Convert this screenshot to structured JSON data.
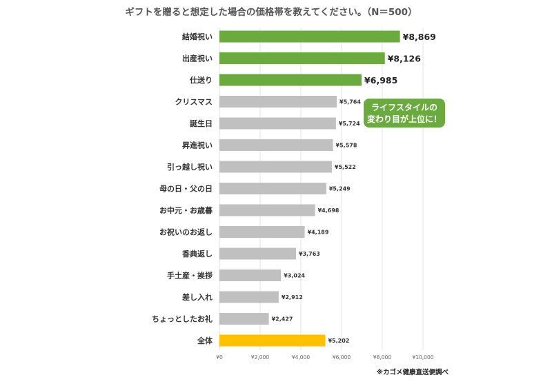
{
  "chart_data": {
    "type": "bar",
    "orientation": "horizontal",
    "title": "ギフトを贈ると想定した場合の価格帯を教えてください。（N＝500）",
    "categories": [
      "結婚祝い",
      "出産祝い",
      "仕送り",
      "クリスマス",
      "誕生日",
      "昇進祝い",
      "引っ越し祝い",
      "母の日・父の日",
      "お中元・お歳暮",
      "お祝いのお返し",
      "香典返し",
      "手土産・挨拶",
      "差し入れ",
      "ちょっとしたお礼",
      "全体"
    ],
    "values": [
      8869,
      8126,
      6985,
      5764,
      5724,
      5578,
      5522,
      5249,
      4698,
      4189,
      3763,
      3024,
      2912,
      2427,
      5202
    ],
    "value_labels": [
      "¥8,869",
      "¥8,126",
      "¥6,985",
      "¥5,764",
      "¥5,724",
      "¥5,578",
      "¥5,522",
      "¥5,249",
      "¥4,698",
      "¥4,189",
      "¥3,763",
      "¥3,024",
      "¥2,912",
      "¥2,427",
      "¥5,202"
    ],
    "highlighted_count": 3,
    "colors": {
      "highlight": "#6aaa3e",
      "normal": "#c0c0c0",
      "total": "#fdc100",
      "grid": "#e3e3e3",
      "callout": "#6aaa3e"
    },
    "xlim": [
      0,
      10000
    ],
    "xticks": [
      0,
      2000,
      4000,
      6000,
      8000,
      10000
    ],
    "xtick_labels": [
      "¥0",
      "¥2,000",
      "¥4,000",
      "¥6,000",
      "¥8,000",
      "¥10,000"
    ],
    "grid": true,
    "annotation": {
      "lines": [
        "ライフスタイルの",
        "変わり目が上位に！"
      ]
    },
    "source": "※カゴメ健康直送便調べ"
  }
}
